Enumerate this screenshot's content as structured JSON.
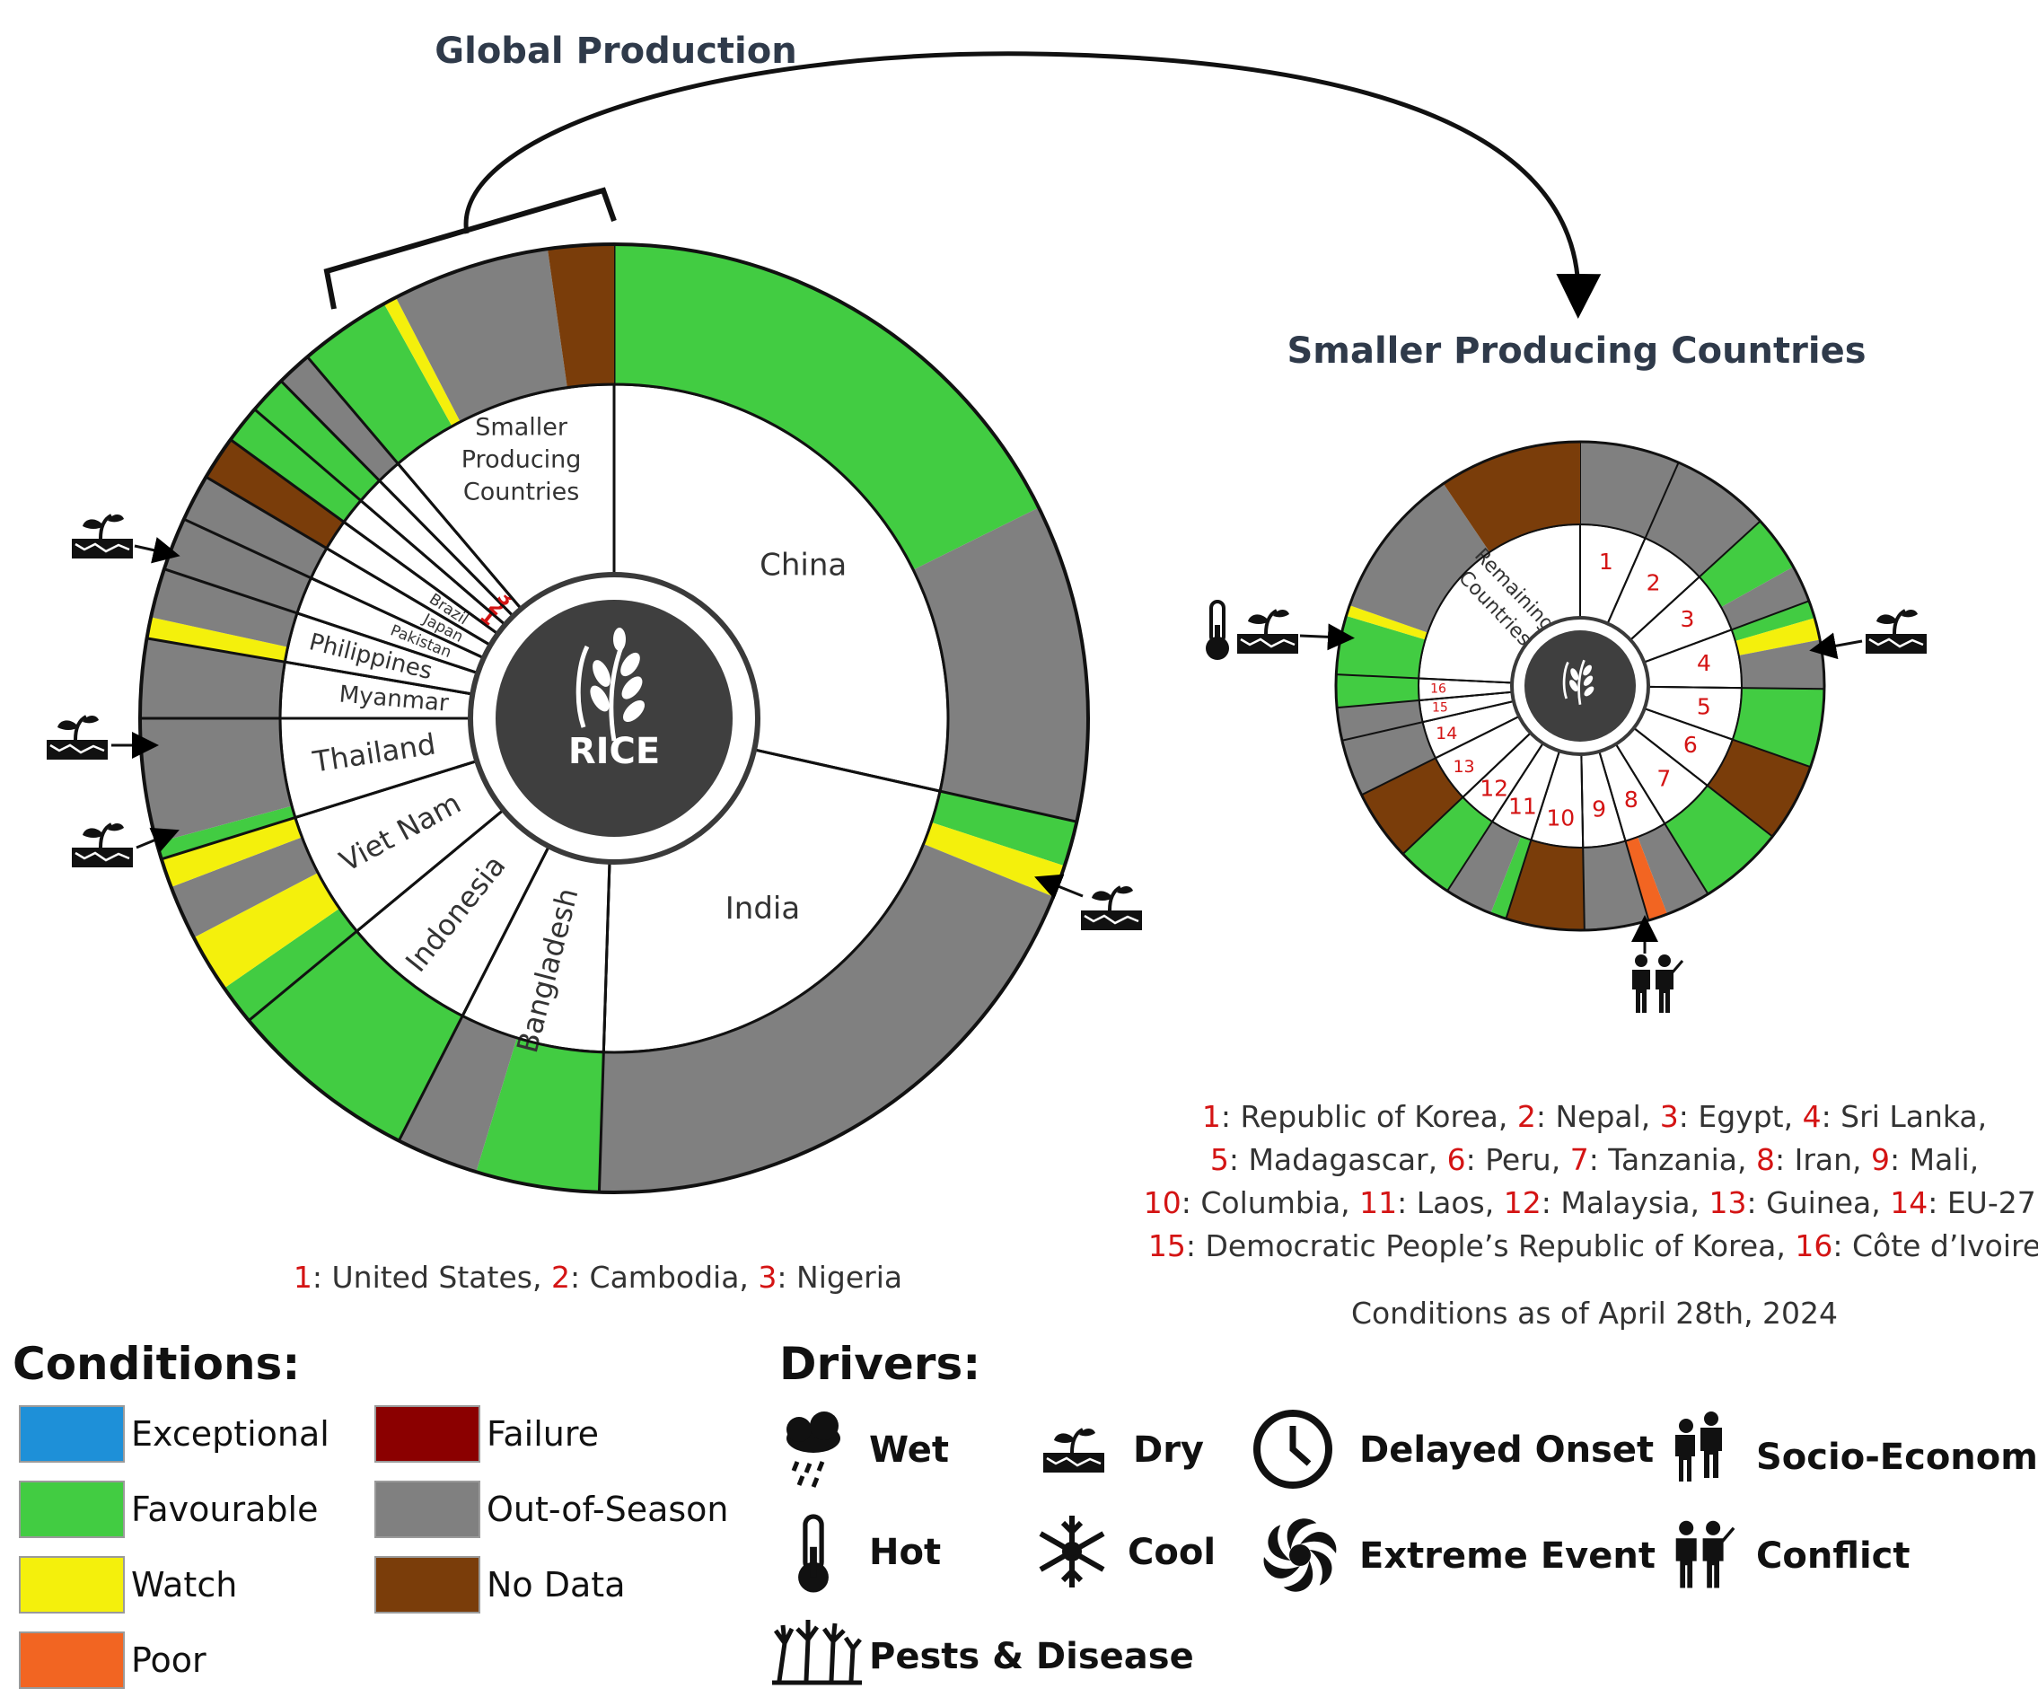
{
  "titles": {
    "global": "Global Production",
    "smaller": "Smaller Producing Countries",
    "rice": "RICE"
  },
  "colors": {
    "Exceptional": "#1e90d8",
    "Favourable": "#42cc42",
    "Watch": "#f4f00c",
    "Poor": "#f26522",
    "Failure": "#8b0000",
    "Out-of-Season": "#808080",
    "No Data": "#7a3d0a"
  },
  "global_chart": {
    "countries": [
      {
        "name": "China",
        "share": 28.5,
        "segments": [
          [
            "Favourable",
            0.62
          ],
          [
            "Out-of-Season",
            0.38
          ]
        ]
      },
      {
        "name": "India",
        "share": 22.0,
        "segments": [
          [
            "Favourable",
            0.07
          ],
          [
            "Watch",
            0.05
          ],
          [
            "Out-of-Season",
            0.88
          ]
        ]
      },
      {
        "name": "Bangladesh",
        "share": 7.0,
        "segments": [
          [
            "Favourable",
            0.6
          ],
          [
            "Out-of-Season",
            0.4
          ]
        ]
      },
      {
        "name": "Indonesia",
        "share": 6.5,
        "segments": [
          [
            "Favourable",
            1.0
          ]
        ]
      },
      {
        "name": "Viet Nam",
        "share": 6.2,
        "segments": [
          [
            "Favourable",
            0.22
          ],
          [
            "Watch",
            0.32
          ],
          [
            "Out-of-Season",
            0.3
          ],
          [
            "Watch",
            0.16
          ]
        ]
      },
      {
        "name": "Thailand",
        "share": 4.8,
        "segments": [
          [
            "Favourable",
            0.12
          ],
          [
            "Out-of-Season",
            0.88
          ]
        ]
      },
      {
        "name": "Myanmar",
        "share": 2.7,
        "segments": [
          [
            "Out-of-Season",
            1.0
          ]
        ]
      },
      {
        "name": "Philippines",
        "share": 2.4,
        "segments": [
          [
            "Watch",
            0.3
          ],
          [
            "Out-of-Season",
            0.7
          ]
        ]
      },
      {
        "name": "Pakistan",
        "share": 1.8,
        "segments": [
          [
            "Out-of-Season",
            1.0
          ]
        ]
      },
      {
        "name": "Japan",
        "share": 1.6,
        "segments": [
          [
            "Out-of-Season",
            1.0
          ]
        ]
      },
      {
        "name": "Brazil",
        "share": 1.5,
        "segments": [
          [
            "No Data",
            1.0
          ]
        ]
      },
      {
        "name": "1",
        "share": 1.3,
        "segments": [
          [
            "Favourable",
            1.0
          ]
        ]
      },
      {
        "name": "2",
        "share": 1.3,
        "segments": [
          [
            "Favourable",
            1.0
          ]
        ]
      },
      {
        "name": "3",
        "share": 1.2,
        "segments": [
          [
            "Out-of-Season",
            1.0
          ]
        ]
      },
      {
        "name": "Smaller Producing Countries",
        "share": 11.2,
        "segments": [
          [
            "Favourable",
            0.28
          ],
          [
            "Watch",
            0.04
          ],
          [
            "Out-of-Season",
            0.48
          ],
          [
            "No Data",
            0.2
          ]
        ]
      }
    ],
    "spc_label_lines": [
      "Smaller",
      "Producing",
      "Countries"
    ],
    "footnote": [
      {
        "n": "1",
        "t": ": United States, "
      },
      {
        "n": "2",
        "t": ": Cambodia, "
      },
      {
        "n": "3",
        "t": ": Nigeria"
      }
    ]
  },
  "small_chart": {
    "countries": [
      {
        "name": "1",
        "share": 7,
        "segments": [
          [
            "Out-of-Season",
            1.0
          ]
        ]
      },
      {
        "name": "2",
        "share": 7,
        "segments": [
          [
            "Out-of-Season",
            1.0
          ]
        ]
      },
      {
        "name": "3",
        "share": 6.5,
        "segments": [
          [
            "Favourable",
            0.6
          ],
          [
            "Out-of-Season",
            0.4
          ]
        ]
      },
      {
        "name": "4",
        "share": 6.2,
        "segments": [
          [
            "Favourable",
            0.2
          ],
          [
            "Watch",
            0.25
          ],
          [
            "Out-of-Season",
            0.55
          ]
        ]
      },
      {
        "name": "5",
        "share": 5.5,
        "segments": [
          [
            "Favourable",
            1.0
          ]
        ]
      },
      {
        "name": "6",
        "share": 5.5,
        "segments": [
          [
            "No Data",
            1.0
          ]
        ]
      },
      {
        "name": "7",
        "share": 6,
        "segments": [
          [
            "Favourable",
            1.0
          ]
        ]
      },
      {
        "name": "8",
        "share": 4.5,
        "segments": [
          [
            "Out-of-Season",
            0.7
          ],
          [
            "Poor",
            0.3
          ]
        ]
      },
      {
        "name": "9",
        "share": 4.5,
        "segments": [
          [
            "Out-of-Season",
            1.0
          ]
        ]
      },
      {
        "name": "10",
        "share": 5.5,
        "segments": [
          [
            "No Data",
            1.0
          ]
        ]
      },
      {
        "name": "11",
        "share": 4.5,
        "segments": [
          [
            "Favourable",
            0.25
          ],
          [
            "Out-of-Season",
            0.75
          ]
        ]
      },
      {
        "name": "12",
        "share": 4,
        "segments": [
          [
            "Favourable",
            1.0
          ]
        ]
      },
      {
        "name": "13",
        "share": 5,
        "segments": [
          [
            "No Data",
            1.0
          ]
        ]
      },
      {
        "name": "14",
        "share": 4,
        "segments": [
          [
            "Out-of-Season",
            1.0
          ]
        ]
      },
      {
        "name": "15",
        "share": 2.3,
        "segments": [
          [
            "Out-of-Season",
            1.0
          ]
        ]
      },
      {
        "name": "16",
        "share": 2.3,
        "segments": [
          [
            "Favourable",
            1.0
          ]
        ]
      },
      {
        "name": "Remaining Countries",
        "share": 25.7,
        "segments": [
          [
            "Favourable",
            0.16
          ],
          [
            "Watch",
            0.03
          ],
          [
            "Out-of-Season",
            0.42
          ],
          [
            "No Data",
            0.39
          ]
        ]
      }
    ],
    "remaining_label_lines": [
      "Remaining",
      "Countries"
    ],
    "footnote_lines": [
      [
        {
          "n": "1",
          "t": ": Republic of Korea, "
        },
        {
          "n": "2",
          "t": ": Nepal, "
        },
        {
          "n": "3",
          "t": ": Egypt, "
        },
        {
          "n": "4",
          "t": ": Sri Lanka,"
        }
      ],
      [
        {
          "n": "5",
          "t": ": Madagascar, "
        },
        {
          "n": "6",
          "t": ": Peru, "
        },
        {
          "n": "7",
          "t": ": Tanzania, "
        },
        {
          "n": "8",
          "t": ": Iran, "
        },
        {
          "n": "9",
          "t": ": Mali,"
        }
      ],
      [
        {
          "n": "10",
          "t": ": Columbia, "
        },
        {
          "n": "11",
          "t": ": Laos, "
        },
        {
          "n": "12",
          "t": ": Malaysia, "
        },
        {
          "n": "13",
          "t": ": Guinea, "
        },
        {
          "n": "14",
          "t": ": EU-27,"
        }
      ],
      [
        {
          "n": "15",
          "t": ": Democratic People’s Republic of Korea, "
        },
        {
          "n": "16",
          "t": ": Côte d’Ivoire"
        }
      ]
    ],
    "date_note": "Conditions as of April 28th, 2024"
  },
  "legend": {
    "conditions_title": "Conditions:",
    "conditions": [
      {
        "label": "Exceptional",
        "color": "#1e90d8"
      },
      {
        "label": "Favourable",
        "color": "#42cc42"
      },
      {
        "label": "Watch",
        "color": "#f4f00c"
      },
      {
        "label": "Poor",
        "color": "#f26522"
      },
      {
        "label": "Failure",
        "color": "#8b0000"
      },
      {
        "label": "Out-of-Season",
        "color": "#808080"
      },
      {
        "label": "No Data",
        "color": "#7a3d0a"
      }
    ],
    "drivers_title": "Drivers:",
    "drivers": [
      {
        "label": "Wet",
        "icon": "wet-icon"
      },
      {
        "label": "Dry",
        "icon": "dry-icon"
      },
      {
        "label": "Delayed Onset",
        "icon": "delayed-onset-icon"
      },
      {
        "label": "Socio-Economic",
        "icon": "socio-economic-icon"
      },
      {
        "label": "Hot",
        "icon": "hot-icon"
      },
      {
        "label": "Cool",
        "icon": "cool-icon"
      },
      {
        "label": "Extreme Event",
        "icon": "extreme-event-icon"
      },
      {
        "label": "Conflict",
        "icon": "conflict-icon"
      },
      {
        "label": "Pests & Disease",
        "icon": "pests-disease-icon"
      }
    ]
  }
}
